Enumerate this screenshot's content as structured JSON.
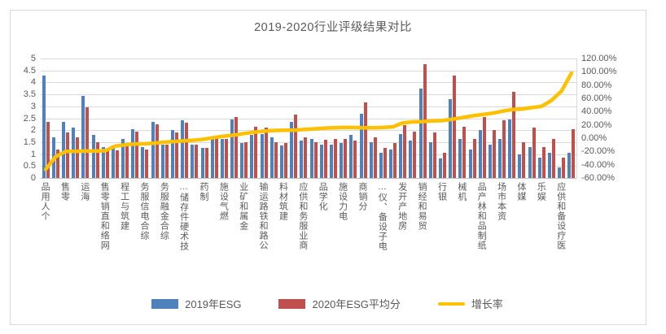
{
  "title": "2019-2020行业评级结果对比",
  "legend": {
    "items": [
      {
        "label": "2019年ESG",
        "color": "#4f81bd",
        "type": "bar"
      },
      {
        "label": "2020年ESG平均分",
        "color": "#c0504d",
        "type": "bar"
      },
      {
        "label": "增长率",
        "color": "#ffc000",
        "type": "line"
      }
    ]
  },
  "left_axis": {
    "ticks": [
      "5",
      "4.5",
      "4",
      "3.5",
      "3",
      "2.5",
      "2",
      "1.5",
      "1",
      "0.5",
      "0"
    ],
    "min": 0,
    "max": 5
  },
  "right_axis": {
    "ticks": [
      "120.00%",
      "100.00%",
      "80.00%",
      "60.00%",
      "40.00%",
      "20.00%",
      "0.00%",
      "-20.00%",
      "-40.00%",
      "-60.00%"
    ],
    "min": -60,
    "max": 120
  },
  "chart_data": {
    "type": "bar",
    "subtype": "combo-bar-line-dual-axis",
    "title": "2019-2020行业评级结果对比",
    "n_categories": 54,
    "category_labels_shown_every_other": [
      "个人用品",
      "零售",
      "海运",
      "网络和直销零售",
      "建筑与工程",
      "综合电信服务",
      "综合金融服务",
      "技术硬件存储…",
      "制药",
      "燃气设施",
      "金属和矿业",
      "公路和铁路运输",
      "建筑材料",
      "商业服务和供应",
      "化学品",
      "电力设施",
      "分销商",
      "电子设备、仪…",
      "房地产开发",
      "贸易和经销",
      "银行",
      "机械",
      "纸制品和林产品",
      "资本市场",
      "媒体",
      "娱乐",
      "医疗设备和供应"
    ],
    "series": [
      {
        "name": "2019年ESG",
        "type": "bar",
        "axis": "left",
        "color": "#4f81bd",
        "values": [
          4.3,
          1.7,
          2.35,
          2.1,
          3.45,
          1.8,
          1.3,
          1.35,
          1.65,
          2.05,
          1.3,
          2.35,
          1.4,
          2.0,
          2.4,
          1.4,
          1.25,
          1.65,
          1.65,
          2.45,
          1.45,
          1.8,
          1.85,
          1.7,
          1.35,
          2.35,
          1.55,
          1.65,
          1.4,
          1.4,
          1.45,
          1.8,
          2.7,
          1.5,
          1.05,
          1.2,
          1.85,
          1.55,
          3.75,
          1.5,
          0.8,
          3.3,
          1.65,
          1.2,
          2.0,
          1.4,
          1.65,
          2.45,
          1.0,
          1.3,
          0.85,
          1.05,
          0.45,
          1.05
        ]
      },
      {
        "name": "2020年ESG平均分",
        "type": "bar",
        "axis": "left",
        "color": "#c0504d",
        "values": [
          2.35,
          1.2,
          1.9,
          1.7,
          2.95,
          1.5,
          1.15,
          1.15,
          1.45,
          1.95,
          1.2,
          2.25,
          1.4,
          1.9,
          2.3,
          1.4,
          1.25,
          1.75,
          1.65,
          2.55,
          1.5,
          2.15,
          2.1,
          1.5,
          1.45,
          2.65,
          1.7,
          1.5,
          1.6,
          1.65,
          1.65,
          1.55,
          3.15,
          1.7,
          1.25,
          1.45,
          2.2,
          1.95,
          4.75,
          1.9,
          1.05,
          4.3,
          2.15,
          1.65,
          2.55,
          2.0,
          2.4,
          3.6,
          1.5,
          2.1,
          1.3,
          1.65,
          0.85,
          2.05
        ]
      },
      {
        "name": "增长率",
        "type": "line",
        "axis": "right",
        "color": "#ffc000",
        "unit": "%",
        "values": [
          -47,
          -28,
          -20,
          -20,
          -19.5,
          -19.5,
          -19,
          -12,
          -10,
          -9,
          -8.5,
          -7.5,
          -6,
          -5,
          -4,
          -3,
          -1.5,
          1,
          3,
          4.5,
          7,
          9,
          10.5,
          11.5,
          12,
          12,
          13,
          14,
          15,
          15.5,
          16,
          16,
          15.5,
          15.5,
          16,
          17,
          23,
          24.5,
          25,
          26,
          26.5,
          28.5,
          31,
          33.5,
          35.5,
          37.5,
          40.5,
          43,
          44,
          46,
          48,
          57,
          71,
          98
        ]
      }
    ],
    "left_ylim": [
      0,
      5
    ],
    "right_ylim": [
      -60,
      120
    ],
    "grid": true,
    "legend_position": "bottom"
  },
  "colors": {
    "grid": "#d9d9d9",
    "axis_text": "#595959",
    "frame_border": "#d9d9d9"
  }
}
